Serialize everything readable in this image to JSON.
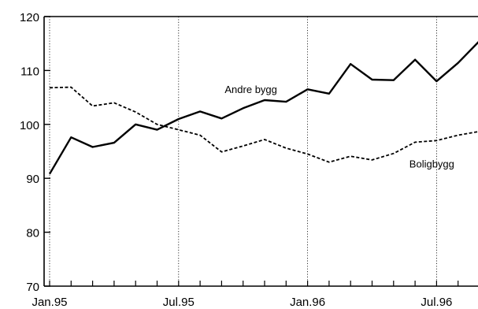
{
  "chart_data": {
    "type": "line",
    "title": "",
    "xlabel": "",
    "ylabel": "",
    "ylim": [
      70,
      120
    ],
    "yticks": [
      70,
      80,
      90,
      100,
      110,
      120
    ],
    "x": [
      "Jan.95",
      "Feb.95",
      "Mar.95",
      "Apr.95",
      "May.95",
      "Jun.95",
      "Jul.95",
      "Aug.95",
      "Sep.95",
      "Oct.95",
      "Nov.95",
      "Dec.95",
      "Jan.96",
      "Feb.96",
      "Mar.96",
      "Apr.96",
      "May.96",
      "Jun.96",
      "Jul.96",
      "Aug.96",
      "Sep.96"
    ],
    "xtick_labels": [
      {
        "index": 0,
        "label": "Jan.95"
      },
      {
        "index": 6,
        "label": "Jul.95"
      },
      {
        "index": 12,
        "label": "Jan.96"
      },
      {
        "index": 18,
        "label": "Jul.96"
      }
    ],
    "grid": "vertical dotted lines at Jan and Jul",
    "series": [
      {
        "name": "Andre bygg",
        "style": "solid",
        "values": [
          90.8,
          97.6,
          95.8,
          96.6,
          100.0,
          99.0,
          101.0,
          102.4,
          101.1,
          103.0,
          104.5,
          104.2,
          106.5,
          105.7,
          111.2,
          108.3,
          108.2,
          112.0,
          108.0,
          111.4,
          115.5
        ]
      },
      {
        "name": "Boligbygg",
        "style": "dashed",
        "values": [
          106.8,
          106.9,
          103.4,
          104.0,
          102.3,
          100.0,
          99.0,
          98.0,
          94.9,
          96.0,
          97.2,
          95.6,
          94.5,
          93.0,
          94.1,
          93.4,
          94.6,
          96.7,
          97.0,
          98.0,
          98.7
        ]
      }
    ],
    "annotations": [
      {
        "text": "Andre bygg",
        "series": "Andre bygg"
      },
      {
        "text": "Boligbygg",
        "series": "Boligbygg"
      }
    ],
    "colors": {
      "line": "#000000",
      "grid": "#000000"
    }
  }
}
